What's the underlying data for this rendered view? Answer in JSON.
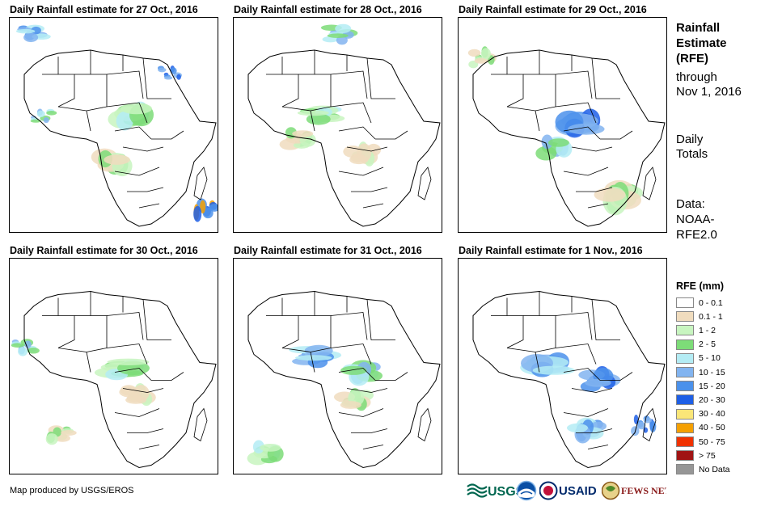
{
  "panels": [
    {
      "title": "Daily Rainfall estimate for 27 Oct., 2016"
    },
    {
      "title": "Daily Rainfall estimate for 28 Oct., 2016"
    },
    {
      "title": "Daily Rainfall estimate for 29 Oct., 2016"
    },
    {
      "title": "Daily Rainfall estimate for 30 Oct., 2016"
    },
    {
      "title": "Daily Rainfall estimate for 31 Oct., 2016"
    },
    {
      "title": "Daily Rainfall estimate for 1 Nov., 2016"
    }
  ],
  "sidebar": {
    "heading_1": "Rainfall",
    "heading_2": "Estimate",
    "heading_3": "(RFE)",
    "through_1": "through",
    "through_2": "Nov 1, 2016",
    "daily_1": "Daily",
    "daily_2": "Totals",
    "data_1": "Data:",
    "data_2": "NOAA-",
    "data_3": "RFE2.0"
  },
  "legend": {
    "title": "RFE (mm)",
    "items": [
      {
        "label": "0 - 0.1",
        "color": "#ffffff"
      },
      {
        "label": "0.1 - 1",
        "color": "#f0dcbe"
      },
      {
        "label": "1 - 2",
        "color": "#c8f5c0"
      },
      {
        "label": "2 - 5",
        "color": "#7ddc78"
      },
      {
        "label": "5 - 10",
        "color": "#b4ecf4"
      },
      {
        "label": "10 - 15",
        "color": "#82b4f0"
      },
      {
        "label": "15 - 20",
        "color": "#4b91eb"
      },
      {
        "label": "20 - 30",
        "color": "#1e5fe6"
      },
      {
        "label": "30 - 40",
        "color": "#fae678"
      },
      {
        "label": "40 - 50",
        "color": "#f5a000"
      },
      {
        "label": "50 - 75",
        "color": "#f03200"
      },
      {
        "label": "> 75",
        "color": "#a01414"
      },
      {
        "label": "No Data",
        "color": "#969696"
      }
    ]
  },
  "footer": {
    "credit": "Map produced by USGS/EROS"
  },
  "logos": {
    "usgs": "USGS",
    "usaid": "USAID",
    "fewsnet": "FEWS NET"
  }
}
